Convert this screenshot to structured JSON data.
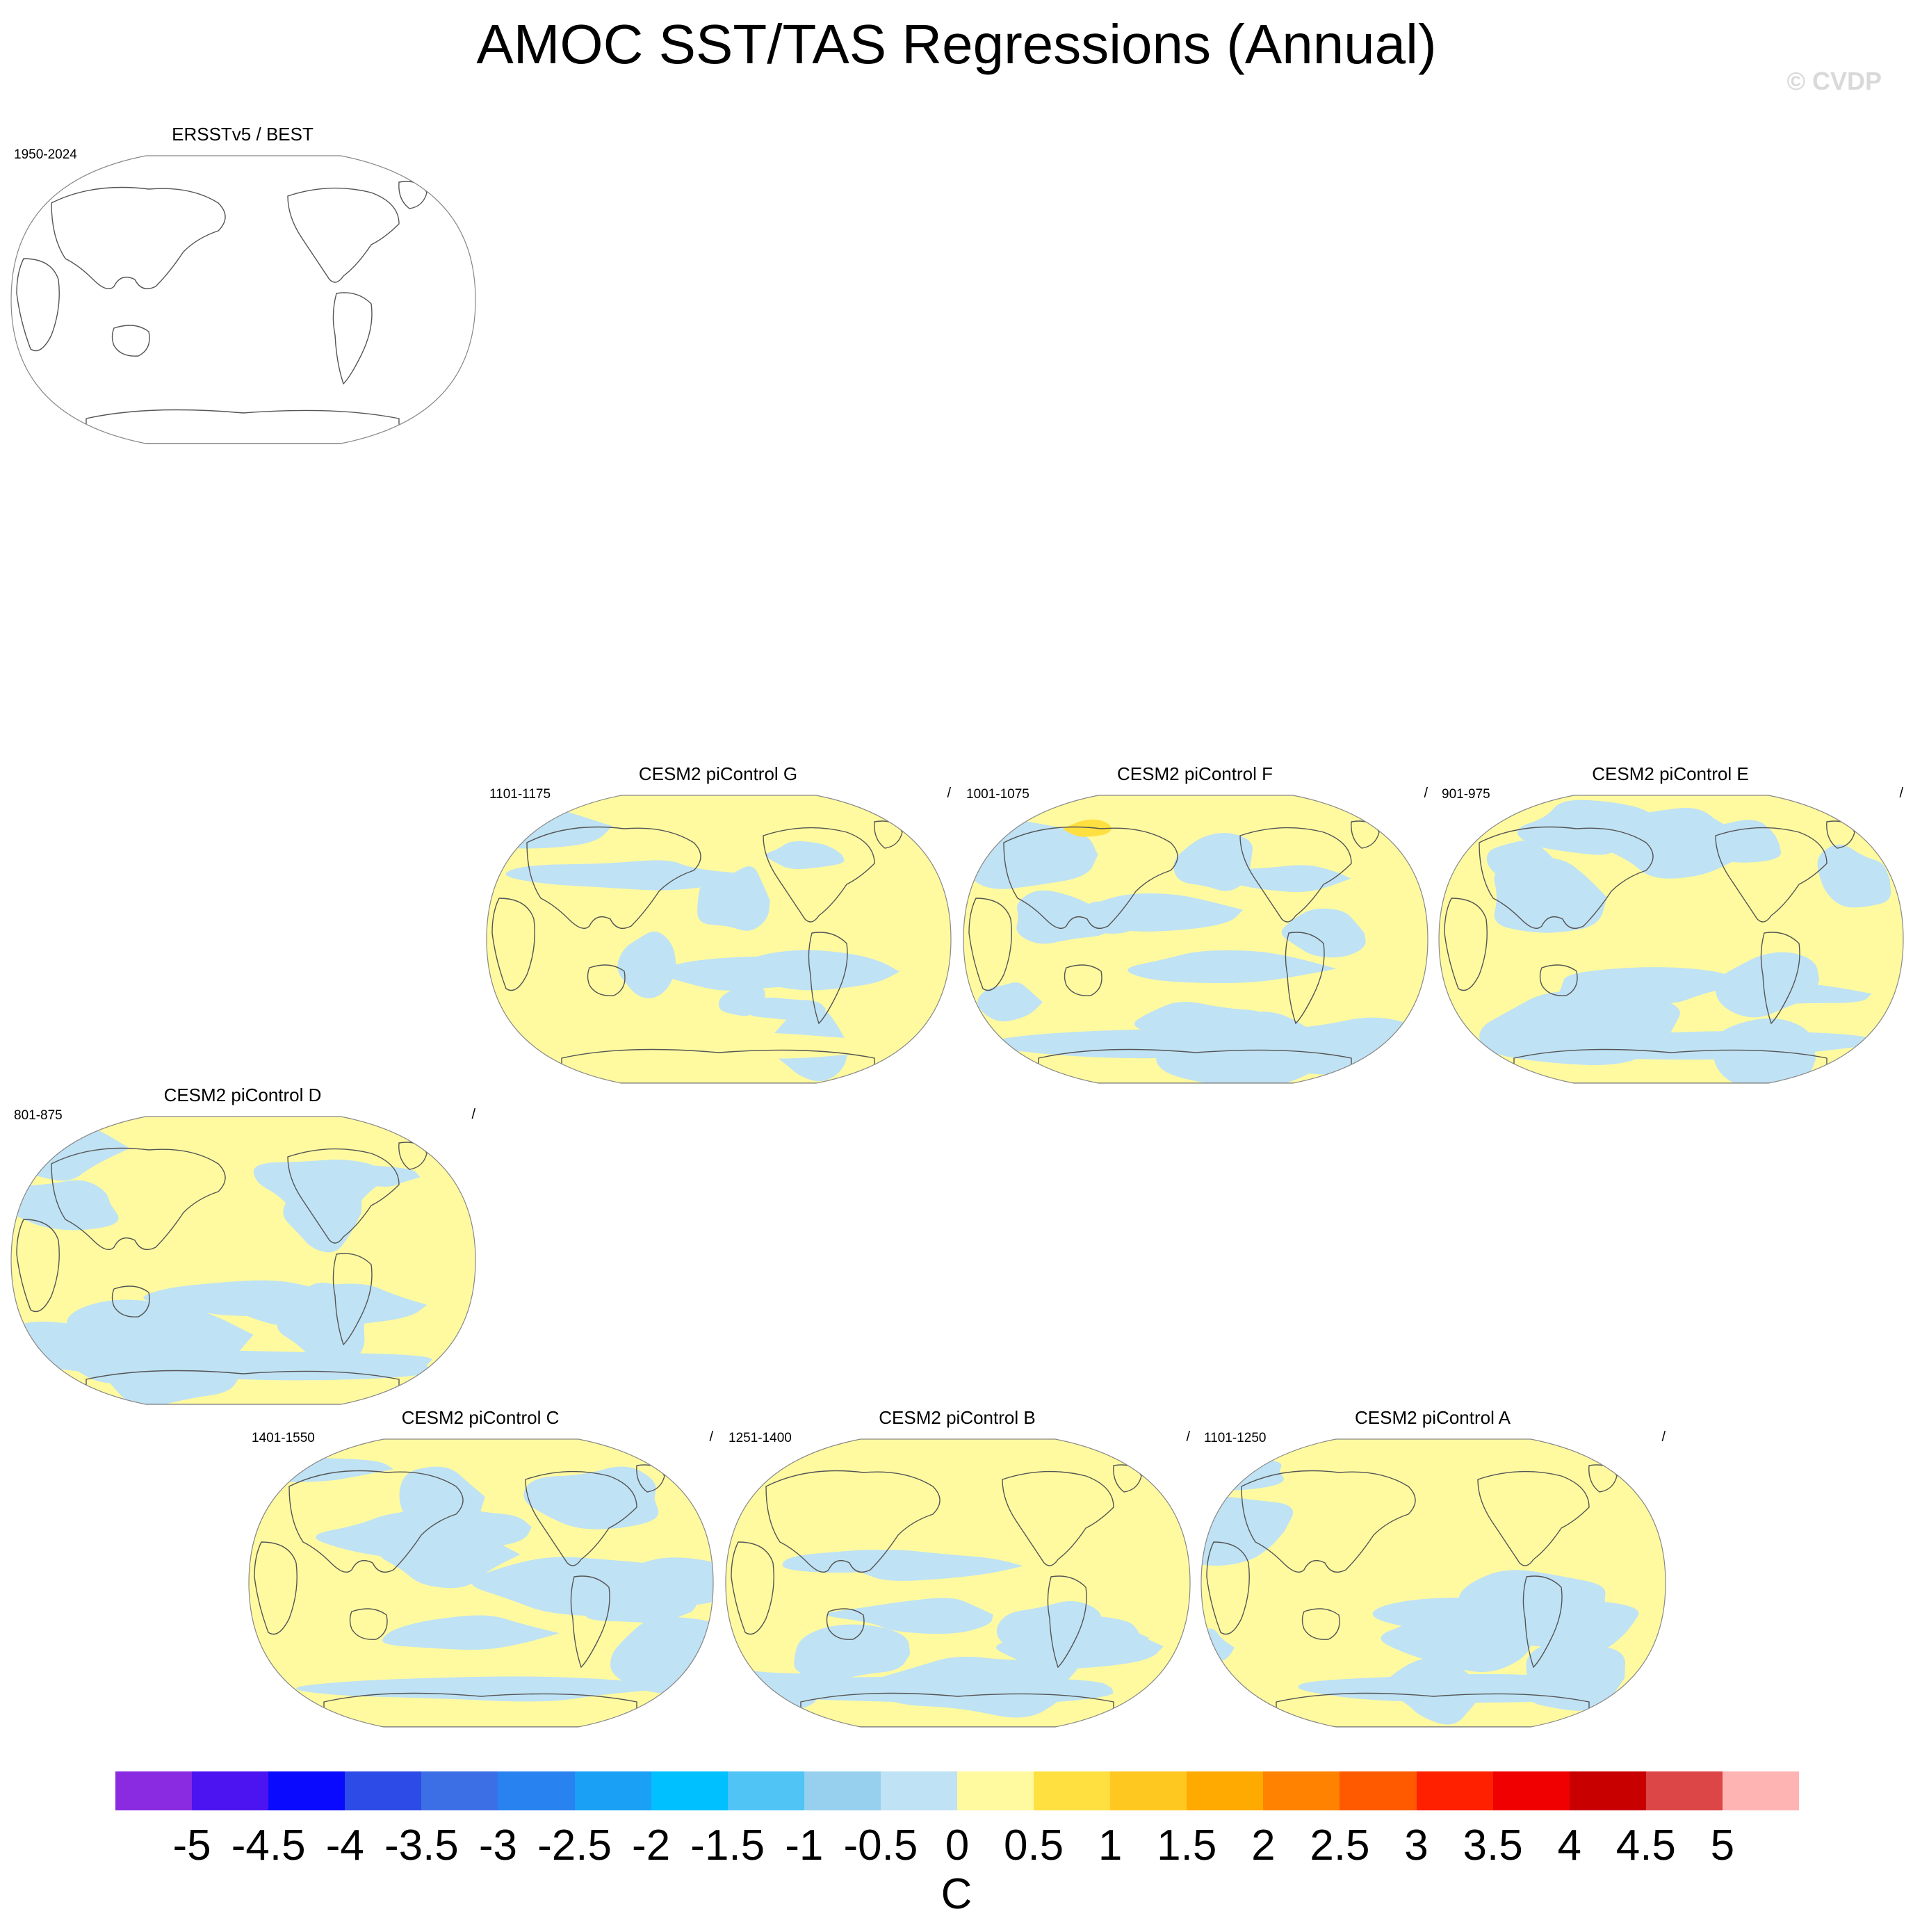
{
  "title": "AMOC SST/TAS Regressions (Annual)",
  "watermark": "© CVDP",
  "panels": [
    {
      "name": "ERSSTv5 / BEST",
      "years": "1950-2024",
      "slash": "",
      "fill": false,
      "warm_spot": false,
      "variant": 0
    },
    {
      "name": "CESM2 piControl G",
      "years": "1101-1175",
      "slash": "/",
      "fill": true,
      "warm_spot": false,
      "variant": 1
    },
    {
      "name": "CESM2 piControl F",
      "years": "1001-1075",
      "slash": "/",
      "fill": true,
      "warm_spot": true,
      "variant": 2
    },
    {
      "name": "CESM2 piControl E",
      "years": "901-975",
      "slash": "/",
      "fill": true,
      "warm_spot": false,
      "variant": 3
    },
    {
      "name": "CESM2 piControl D",
      "years": "801-875",
      "slash": "/",
      "fill": true,
      "warm_spot": false,
      "variant": 4
    },
    {
      "name": "CESM2 piControl C",
      "years": "1401-1550",
      "slash": "/",
      "fill": true,
      "warm_spot": false,
      "variant": 5
    },
    {
      "name": "CESM2 piControl B",
      "years": "1251-1400",
      "slash": "/",
      "fill": true,
      "warm_spot": false,
      "variant": 6
    },
    {
      "name": "CESM2 piControl A",
      "years": "1101-1250",
      "slash": "/",
      "fill": true,
      "warm_spot": false,
      "variant": 7
    }
  ],
  "colorbar": {
    "ticks": [
      "-5",
      "-4.5",
      "-4",
      "-3.5",
      "-3",
      "-2.5",
      "-2",
      "-1.5",
      "-1",
      "-0.5",
      "0",
      "0.5",
      "1",
      "1.5",
      "2",
      "2.5",
      "3",
      "3.5",
      "4",
      "4.5",
      "5"
    ],
    "colors": [
      "#8a2be2",
      "#4b14f0",
      "#0a0aff",
      "#2d4be6",
      "#3c6ee6",
      "#2882f0",
      "#1aa0f5",
      "#00c0ff",
      "#50c4f4",
      "#96d0ee",
      "#bfe2f4",
      "#fffaa0",
      "#ffe040",
      "#ffc820",
      "#ffaa00",
      "#ff8200",
      "#ff5a00",
      "#ff2000",
      "#f00000",
      "#c80000",
      "#dc4646",
      "#ffb4b4"
    ],
    "units": "C"
  },
  "map_colors": {
    "cool": "#bfe2f4",
    "warm": "#fffaa0",
    "warm_strong": "#ffe040",
    "coast": "#555555",
    "outline": "#888888"
  }
}
